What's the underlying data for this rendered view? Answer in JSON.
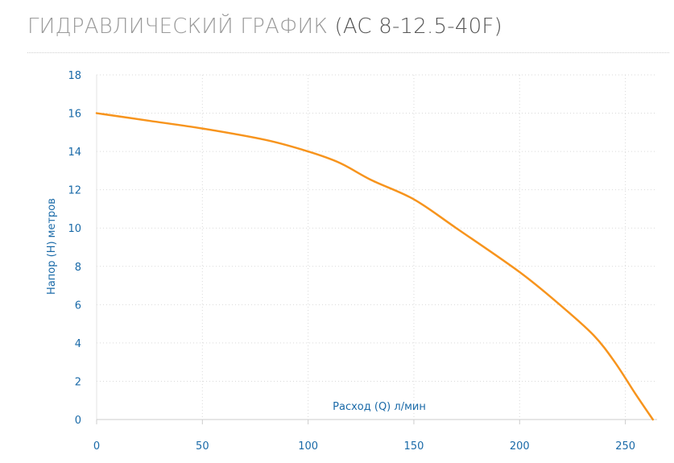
{
  "title": {
    "main": "ГИДРАВЛИЧЕСКИЙ ГРАФИК",
    "model": "(AC 8-12.5-40F)"
  },
  "colors": {
    "line": "#f7941d",
    "axis_text": "#1a6aa8",
    "grid": "#d9d9d9",
    "title": "#9a9a9a"
  },
  "chart_data": {
    "type": "line",
    "xlabel": "Расход (Q) л/мин",
    "ylabel": "Напор (H) метров",
    "xlim": [
      0,
      265
    ],
    "ylim": [
      0,
      18
    ],
    "x_ticks": [
      0,
      50,
      100,
      150,
      200,
      250
    ],
    "y_ticks": [
      0,
      2,
      4,
      6,
      8,
      10,
      12,
      14,
      16,
      18
    ],
    "grid": true,
    "series": [
      {
        "x": [
          0,
          25,
          50,
          80,
          100,
          115,
          130,
          150,
          170,
          200,
          220,
          235,
          245,
          255,
          263
        ],
        "y": [
          16,
          15.6,
          15.2,
          14.6,
          14,
          13.4,
          12.5,
          11.5,
          10,
          7.7,
          5.9,
          4.4,
          3,
          1.3,
          0
        ]
      }
    ]
  }
}
